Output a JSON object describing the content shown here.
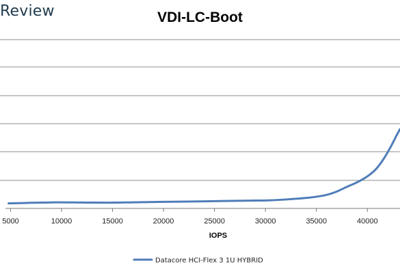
{
  "brand": {
    "text": "Review",
    "color": "#1f3b4d"
  },
  "chart_data": {
    "type": "line",
    "title": "VDI-LC-Boot",
    "xlabel": "IOPS",
    "ylabel": "",
    "xlim": [
      4500,
      43200
    ],
    "x_ticks": [
      5000,
      10000,
      15000,
      20000,
      25000,
      30000,
      35000,
      40000
    ],
    "grid": "horizontal",
    "legend_position": "bottom",
    "series": [
      {
        "name": "Datacore HCI-Flex 3 1U HYBRID",
        "color": "#4f7db8",
        "points": [
          [
            4800,
            0.03
          ],
          [
            7000,
            0.033
          ],
          [
            9500,
            0.036
          ],
          [
            12000,
            0.035
          ],
          [
            14500,
            0.034
          ],
          [
            17000,
            0.036
          ],
          [
            20000,
            0.039
          ],
          [
            23000,
            0.041
          ],
          [
            26000,
            0.044
          ],
          [
            28500,
            0.046
          ],
          [
            30500,
            0.048
          ],
          [
            32500,
            0.055
          ],
          [
            34500,
            0.065
          ],
          [
            36000,
            0.08
          ],
          [
            37000,
            0.1
          ],
          [
            38000,
            0.128
          ],
          [
            39000,
            0.155
          ],
          [
            40000,
            0.19
          ],
          [
            40800,
            0.23
          ],
          [
            41500,
            0.285
          ],
          [
            42200,
            0.355
          ],
          [
            42800,
            0.425
          ],
          [
            43200,
            0.47
          ]
        ]
      }
    ]
  }
}
